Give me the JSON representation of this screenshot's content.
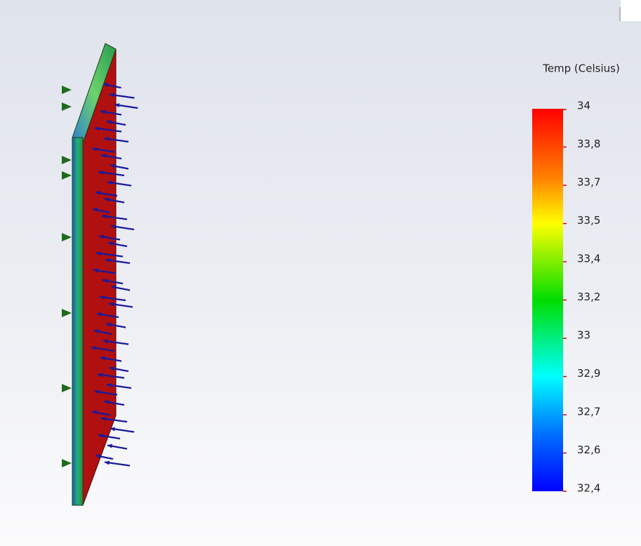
{
  "legend": {
    "title": "Temp (Celsius)",
    "ticks": [
      "34",
      "33,8",
      "33,7",
      "33,5",
      "33,4",
      "33,2",
      "33",
      "32,9",
      "32,7",
      "32,6",
      "32,4"
    ]
  }
}
